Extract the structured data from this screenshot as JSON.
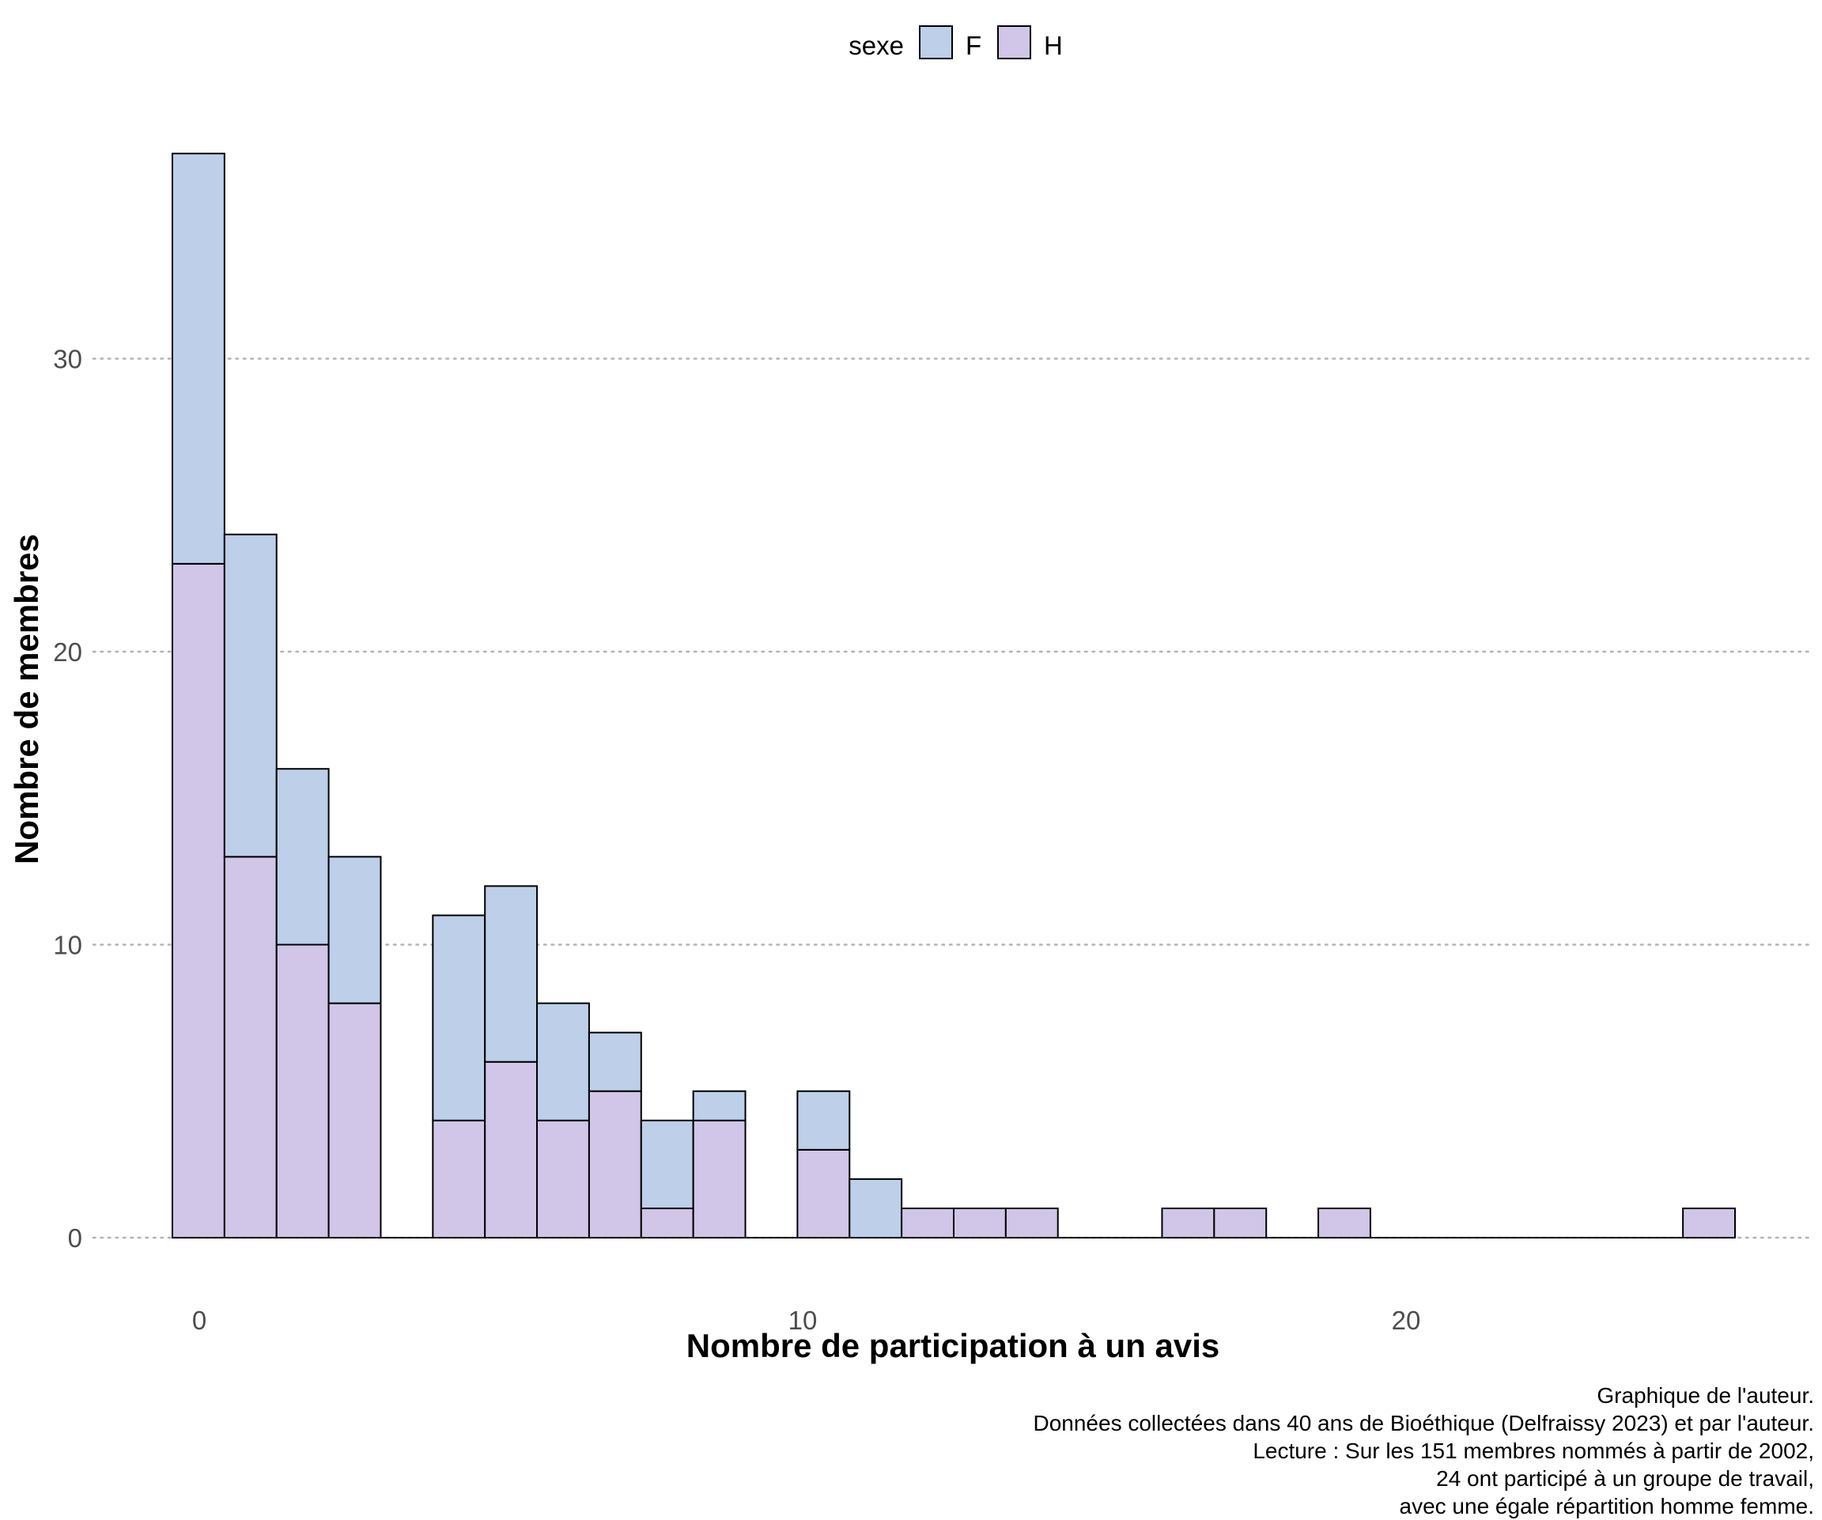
{
  "chart_data": {
    "type": "bar",
    "stacked": true,
    "xlabel": "Nombre de participation à un avis",
    "ylabel": "Nombre de membres",
    "x_ticks": [
      0,
      10,
      20
    ],
    "y_ticks": [
      0,
      10,
      20,
      30
    ],
    "xlim": [
      -0.4,
      26.2
    ],
    "ylim": [
      0,
      37
    ],
    "grid": "horizontal dotted",
    "legend": {
      "title": "sexe",
      "position": "top",
      "entries": [
        "F",
        "H"
      ]
    },
    "colors": {
      "F": "#bdcfe9",
      "H": "#d1c5e8",
      "outline": "#000000",
      "grid": "#b3b3b3"
    },
    "bins": [
      0,
      0.86,
      1.72,
      2.59,
      3.45,
      4.31,
      5.17,
      6.03,
      6.9,
      7.76,
      8.62,
      9.48,
      10.34,
      11.21,
      12.07,
      12.93,
      13.79,
      14.66,
      15.52,
      16.38,
      17.24,
      18.1,
      18.97,
      19.83,
      20.69,
      21.55,
      22.41,
      23.28,
      24.14,
      25.0
    ],
    "series": [
      {
        "name": "H",
        "values": [
          23,
          13,
          10,
          8,
          0,
          4,
          6,
          4,
          5,
          1,
          4,
          0,
          3,
          0,
          1,
          1,
          1,
          0,
          0,
          1,
          1,
          0,
          1,
          0,
          0,
          0,
          0,
          0,
          0,
          1
        ]
      },
      {
        "name": "F",
        "values": [
          14,
          11,
          6,
          5,
          0,
          7,
          6,
          4,
          2,
          3,
          1,
          0,
          2,
          2,
          0,
          0,
          0,
          0,
          0,
          0,
          0,
          0,
          0,
          0,
          0,
          0,
          0,
          0,
          0,
          0
        ]
      }
    ]
  },
  "caption": [
    "Graphique de l'auteur.",
    "Données collectées dans 40 ans de Bioéthique (Delfraissy 2023) et par l'auteur.",
    "Lecture : Sur les 151 membres nommés à partir de 2002,",
    "24 ont participé à un groupe de travail,",
    "avec une égale répartition homme femme."
  ]
}
